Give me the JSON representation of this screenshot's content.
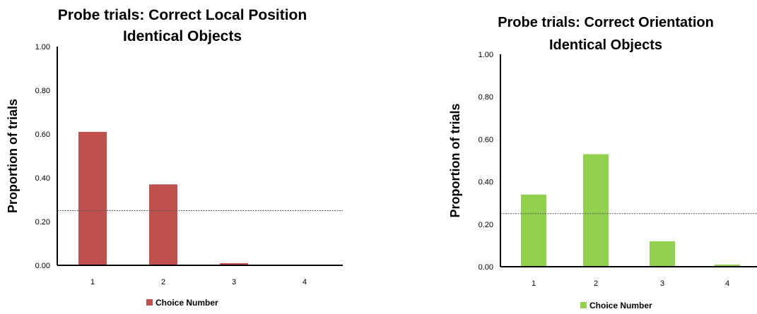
{
  "chart_data": [
    {
      "type": "bar",
      "title": "Probe trials: Correct Local Position",
      "subtitle": "Identical Objects",
      "ylabel": "Proportion of trials",
      "xlabel": "",
      "categories": [
        "1",
        "2",
        "3",
        "4"
      ],
      "ylim": [
        0,
        1
      ],
      "yticks": [
        "0.00",
        "0.20",
        "0.40",
        "0.60",
        "0.80",
        "1.00"
      ],
      "series": [
        {
          "name": "Choice Number",
          "color": "#c0504d",
          "values": [
            0.61,
            0.37,
            0.01,
            0.0
          ]
        }
      ],
      "reference_line": 0.25,
      "grid": false,
      "legend_position": "bottom"
    },
    {
      "type": "bar",
      "title": "Probe trials: Correct Orientation",
      "subtitle": "Identical Objects",
      "ylabel": "Proportion of trials",
      "xlabel": "",
      "categories": [
        "1",
        "2",
        "3",
        "4"
      ],
      "ylim": [
        0,
        1
      ],
      "yticks": [
        "0.00",
        "0.20",
        "0.40",
        "0.60",
        "0.80",
        "1.00"
      ],
      "series": [
        {
          "name": "Choice Number",
          "color": "#92d050",
          "values": [
            0.34,
            0.53,
            0.12,
            0.01
          ]
        }
      ],
      "reference_line": 0.25,
      "grid": false,
      "legend_position": "bottom"
    }
  ]
}
